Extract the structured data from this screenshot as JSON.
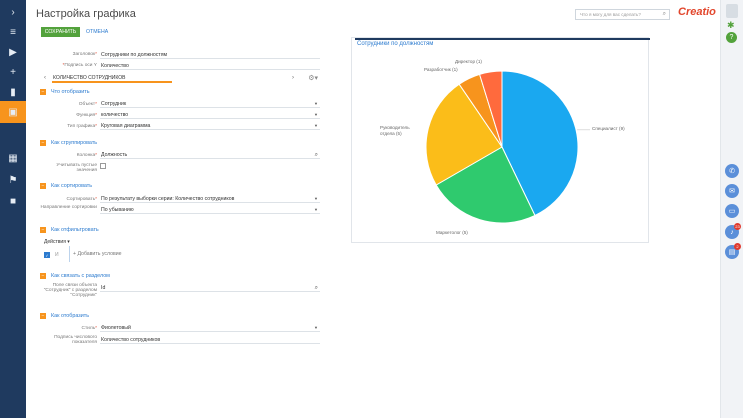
{
  "header": {
    "title": "Настройка графика",
    "search_placeholder": "Что я могу для вас сделать?",
    "logo": "Creatio",
    "save_label": "СОХРАНИТЬ",
    "cancel_label": "ОТМЕНА"
  },
  "form": {
    "heading_label": "Заголовок",
    "heading_value": "Сотрудники по должностям",
    "yaxis_label": "Подпись оси Y",
    "yaxis_value": "Количество",
    "tab_label": "КОЛИЧЕСТВО СОТРУДНИКОВ",
    "sections": {
      "what": "Что отобразить",
      "group": "Как сгруппировать",
      "sort": "Как сортировать",
      "filter": "Как отфильтровать",
      "link": "Как связать с разделом",
      "show": "Как отобразить"
    },
    "object_label": "Объект",
    "object_value": "Сотрудник",
    "func_label": "Функция",
    "func_value": "количество",
    "type_label": "Тип графика",
    "type_value": "Круговая диаграмма",
    "column_label": "Колонка",
    "column_value": "Должность",
    "empty_label": "Учитывать пустые значения",
    "sort_label": "Сортировать",
    "sort_value": "По результату выборки серии: Количество сотрудников",
    "sortdir_label": "Направление сортировки",
    "sortdir_value": "По убыванию",
    "actions_label": "Действия",
    "and_label": "И",
    "add_condition": "Добавить условие",
    "link_label": "Поле связи объекта \"Сотрудник\" с разделом \"Сотрудник\"",
    "link_value": "Id",
    "style_label": "Стиль",
    "style_value": "Фиолетовый",
    "numlabel_label": "Подпись числового показателя",
    "numlabel_value": "Количество сотрудников"
  },
  "icons": {
    "sidebar": [
      "chevron-right-icon",
      "menu-icon",
      "play-icon",
      "plus-icon",
      "chart-icon",
      "person-icon",
      "id-card-icon",
      "building-icon",
      "flag-icon",
      "chat-icon"
    ],
    "rail": [
      "phone-icon",
      "mail-icon",
      "chat-icon",
      "bell-icon",
      "task-icon"
    ]
  },
  "rail_badges": [
    "23",
    "2"
  ],
  "colors": {
    "accent": "#f7941d",
    "brand_dark": "#1f3a5f",
    "link": "#2c7bcf",
    "save": "#53a23c"
  },
  "chart_data": {
    "type": "pie",
    "title": "Сотрудники по должностям",
    "slices": [
      {
        "label": "Специалист (9)",
        "value": 9,
        "color": "#1aa8f0"
      },
      {
        "label": "Маркетолог (5)",
        "value": 5,
        "color": "#2fca6e"
      },
      {
        "label": "Руководитель отдела (5)",
        "value": 5,
        "color": "#fbbd19"
      },
      {
        "label": "Разработчик (1)",
        "value": 1,
        "color": "#f7941d"
      },
      {
        "label": "Директор (1)",
        "value": 1,
        "color": "#ff6a3d"
      }
    ]
  }
}
